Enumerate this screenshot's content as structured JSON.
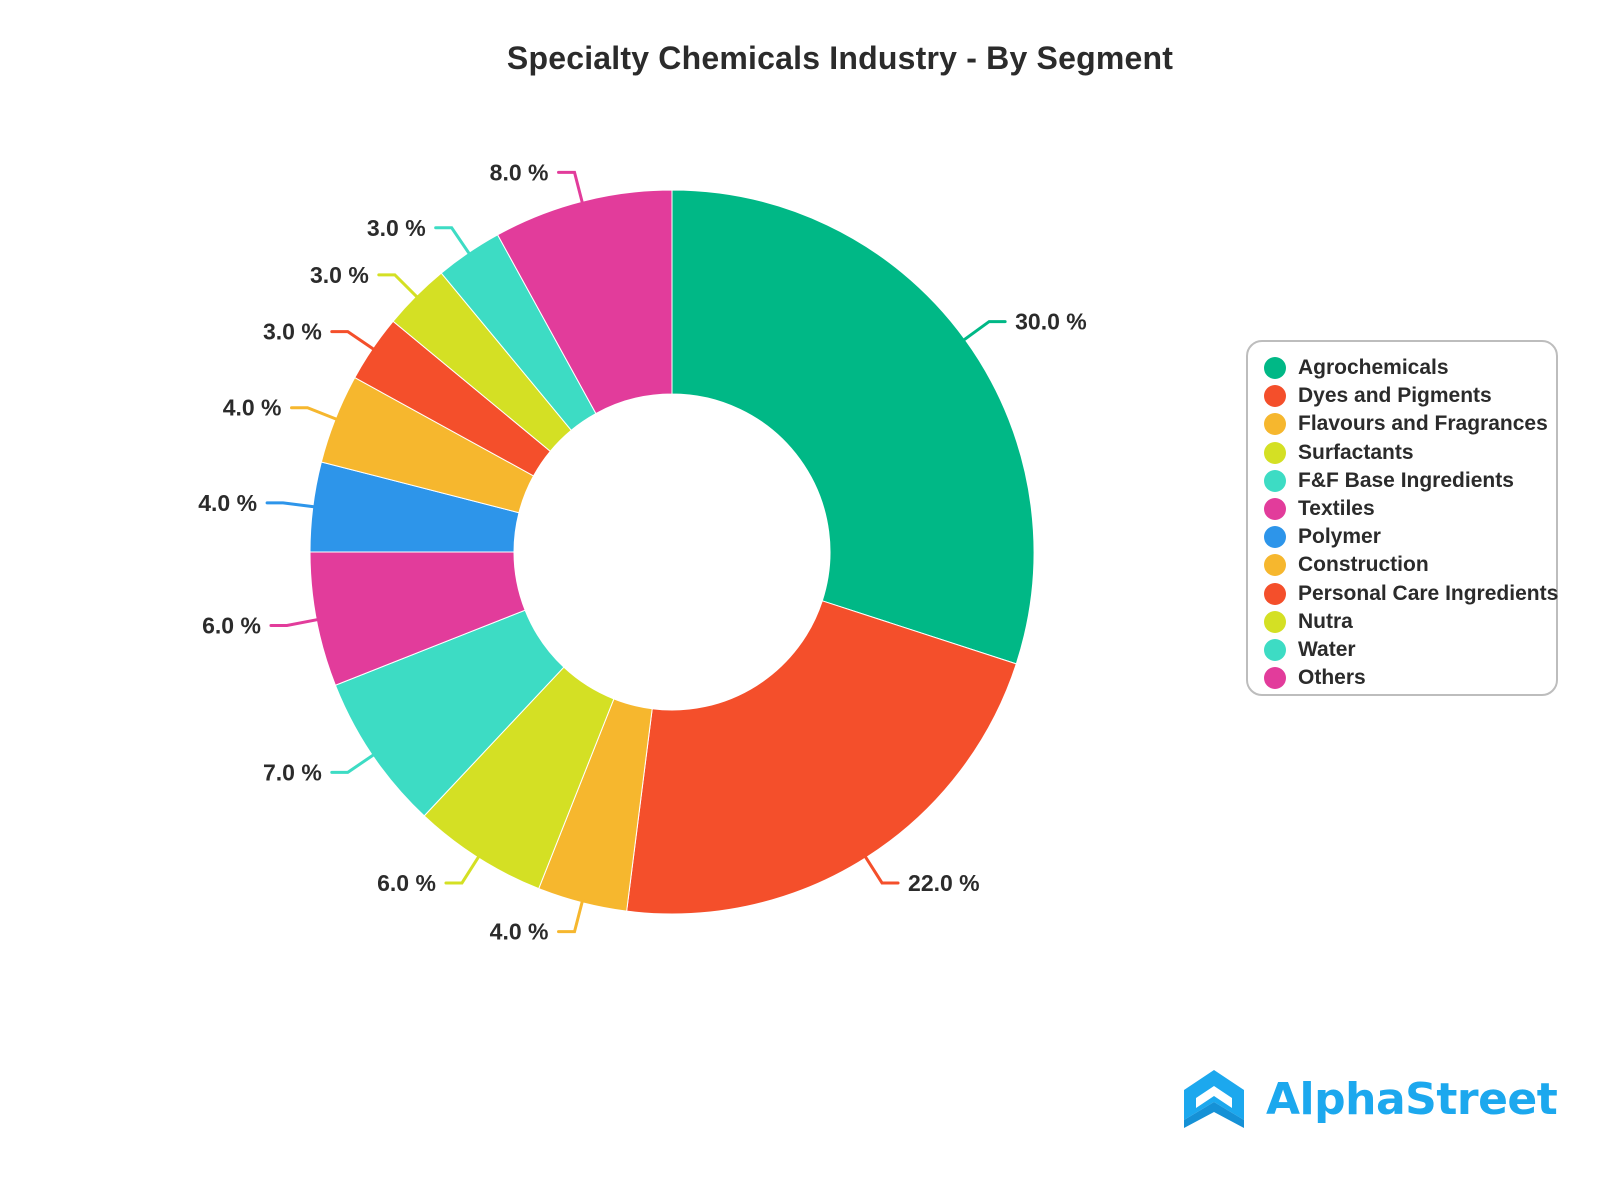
{
  "chart_data": {
    "type": "pie",
    "title": "Specialty Chemicals Industry - By Segment",
    "donut": true,
    "legend_position": "right",
    "value_suffix": " %",
    "categories": [
      "Agrochemicals",
      "Dyes and Pigments",
      "Flavours and Fragrances",
      "Surfactants",
      "F&F Base Ingredients",
      "Textiles",
      "Polymer",
      "Construction",
      "Personal Care Ingredients",
      "Nutra",
      "Water",
      "Others"
    ],
    "values": [
      30.0,
      22.0,
      4.0,
      6.0,
      7.0,
      6.0,
      4.0,
      4.0,
      3.0,
      3.0,
      3.0,
      8.0
    ],
    "colors": [
      "#00b886",
      "#f44f2b",
      "#f6b72e",
      "#d4e024",
      "#3ddcc4",
      "#e23c9b",
      "#2d95ea",
      "#f6b72e",
      "#f44f2b",
      "#d4e024",
      "#3ddcc4",
      "#e23c9b"
    ]
  },
  "brand": {
    "name": "AlphaStreet",
    "color": "#1ca8ee",
    "icon": "alphastreet-logo-icon"
  }
}
